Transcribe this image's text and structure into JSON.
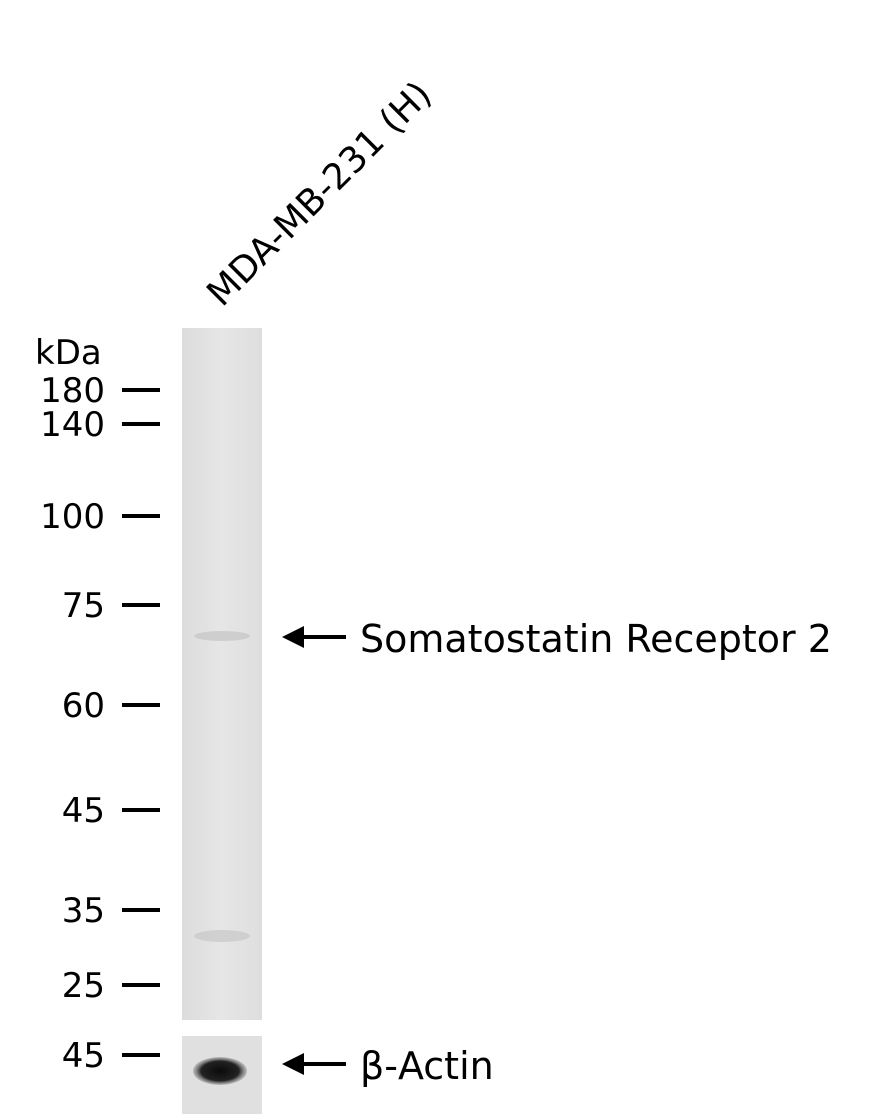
{
  "lane_label": "MDA-MB-231 (H)",
  "unit": "kDa",
  "upper_markers": [
    180,
    140,
    100,
    75,
    60,
    45,
    35,
    25
  ],
  "lower_markers": [
    45
  ],
  "annotations": [
    "Somatostatin Receptor 2",
    "β-Actin"
  ]
}
